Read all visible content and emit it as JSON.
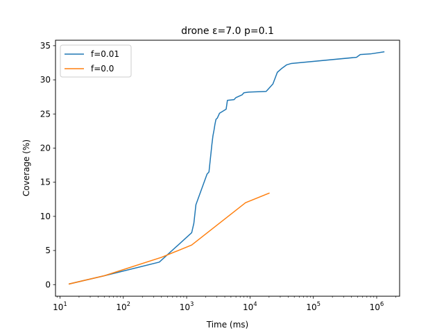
{
  "chart_data": {
    "type": "line",
    "title": "drone ε=7.0 p=0.1",
    "xlabel": "Time (ms)",
    "ylabel": "Coverage (%)",
    "xscale": "log",
    "xlim": [
      8.5,
      2300000
    ],
    "ylim": [
      -1.7,
      35.8
    ],
    "xticks": [
      {
        "value": 10,
        "base": "10",
        "exp": "1"
      },
      {
        "value": 100,
        "base": "10",
        "exp": "2"
      },
      {
        "value": 1000,
        "base": "10",
        "exp": "3"
      },
      {
        "value": 10000,
        "base": "10",
        "exp": "4"
      },
      {
        "value": 100000,
        "base": "10",
        "exp": "5"
      },
      {
        "value": 1000000,
        "base": "10",
        "exp": "6"
      }
    ],
    "yticks": [
      0,
      5,
      10,
      15,
      20,
      25,
      30,
      35
    ],
    "grid": false,
    "legend_position": "top-left",
    "series": [
      {
        "name": "f=0.01",
        "color": "#1f77b4",
        "points": [
          [
            14,
            0.1
          ],
          [
            50,
            1.3
          ],
          [
            370,
            3.3
          ],
          [
            1200,
            7.6
          ],
          [
            1300,
            9.0
          ],
          [
            1400,
            11.7
          ],
          [
            2100,
            16.2
          ],
          [
            2250,
            16.5
          ],
          [
            2500,
            20.5
          ],
          [
            2600,
            21.8
          ],
          [
            2700,
            22.6
          ],
          [
            2800,
            23.5
          ],
          [
            2900,
            24.2
          ],
          [
            3050,
            24.4
          ],
          [
            3300,
            25.1
          ],
          [
            4200,
            25.7
          ],
          [
            4400,
            27.0
          ],
          [
            5600,
            27.1
          ],
          [
            6000,
            27.4
          ],
          [
            7500,
            27.8
          ],
          [
            8000,
            28.1
          ],
          [
            9500,
            28.2
          ],
          [
            18000,
            28.3
          ],
          [
            23000,
            29.4
          ],
          [
            27000,
            31.1
          ],
          [
            32000,
            31.7
          ],
          [
            38000,
            32.2
          ],
          [
            45000,
            32.4
          ],
          [
            480000,
            33.3
          ],
          [
            550000,
            33.7
          ],
          [
            800000,
            33.8
          ],
          [
            1300000,
            34.1
          ]
        ]
      },
      {
        "name": "f=0.0",
        "color": "#ff7f0e",
        "points": [
          [
            14,
            0.1
          ],
          [
            50,
            1.3
          ],
          [
            400,
            4.0
          ],
          [
            1200,
            5.8
          ],
          [
            8500,
            12.0
          ],
          [
            20000,
            13.4
          ]
        ]
      }
    ]
  }
}
